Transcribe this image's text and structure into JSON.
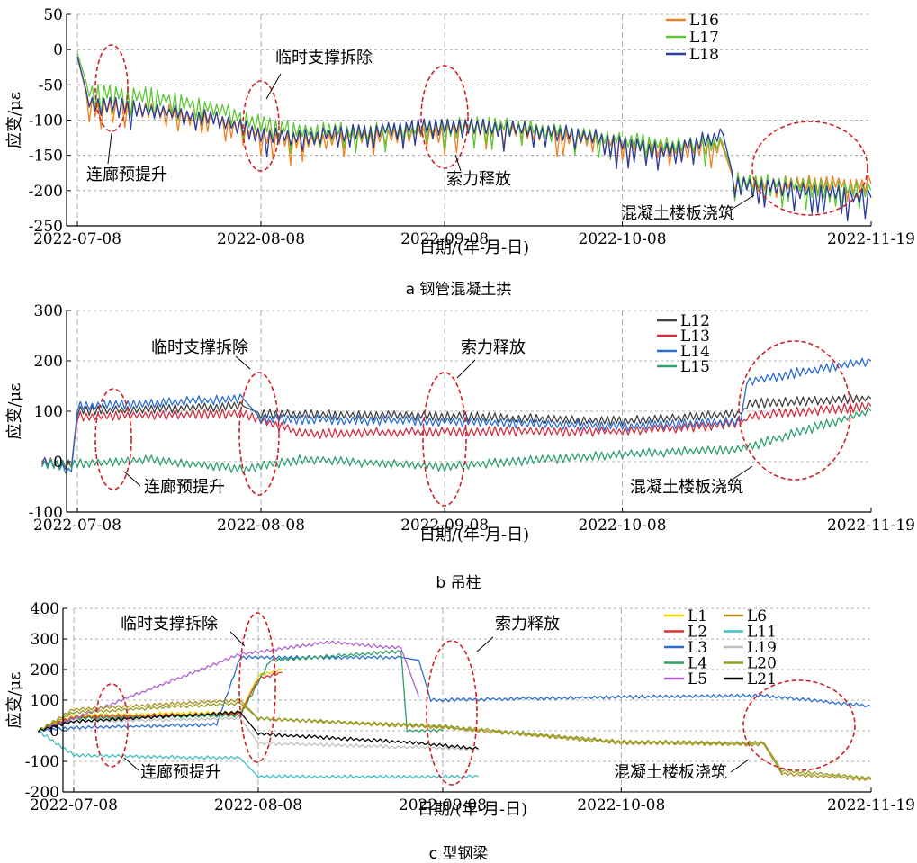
{
  "chart_data": [
    {
      "panel": "a",
      "caption": "a 钢管混凝土拱",
      "type": "line",
      "xlabel": "日期/(年-月-日)",
      "ylabel": "应变/με",
      "x_ticks": [
        "2022-07-08",
        "2022-08-08",
        "2022-09-08",
        "2022-10-08",
        "2022-11-19"
      ],
      "xlim": [
        "2022-07-08",
        "2022-11-19"
      ],
      "ylim": [
        -250,
        50
      ],
      "y_ticks": [
        50,
        0,
        -50,
        -100,
        -150,
        -200,
        -250
      ],
      "legend_position": "top-right",
      "grid": true,
      "series": [
        {
          "name": "L16",
          "color": "#f08020",
          "x": [
            "2022-07-08",
            "2022-07-10",
            "2022-07-20",
            "2022-08-01",
            "2022-08-08",
            "2022-08-15",
            "2022-09-01",
            "2022-09-15",
            "2022-10-01",
            "2022-10-15",
            "2022-10-25",
            "2022-10-27",
            "2022-11-19"
          ],
          "values": [
            -10,
            -80,
            -85,
            -100,
            -120,
            -130,
            -120,
            -110,
            -125,
            -140,
            -140,
            -190,
            -190
          ]
        },
        {
          "name": "L17",
          "color": "#5ac832",
          "x": [
            "2022-07-08",
            "2022-07-10",
            "2022-07-20",
            "2022-08-01",
            "2022-08-08",
            "2022-08-15",
            "2022-09-01",
            "2022-09-15",
            "2022-10-01",
            "2022-10-15",
            "2022-10-25",
            "2022-10-27",
            "2022-11-19"
          ],
          "values": [
            -5,
            -60,
            -65,
            -85,
            -105,
            -115,
            -115,
            -105,
            -120,
            -135,
            -135,
            -185,
            -200
          ]
        },
        {
          "name": "L18",
          "color": "#2a3c9a",
          "x": [
            "2022-07-08",
            "2022-07-10",
            "2022-07-20",
            "2022-08-01",
            "2022-08-08",
            "2022-08-15",
            "2022-09-01",
            "2022-09-15",
            "2022-10-01",
            "2022-10-15",
            "2022-10-25",
            "2022-10-27",
            "2022-11-19"
          ],
          "values": [
            -10,
            -75,
            -85,
            -100,
            -120,
            -125,
            -110,
            -110,
            -120,
            -145,
            -120,
            -190,
            -210
          ]
        }
      ],
      "annotations": [
        {
          "text": "连廊预提升",
          "date": "2022-07-10"
        },
        {
          "text": "临时支撑拆除",
          "date": "2022-08-05"
        },
        {
          "text": "索力释放",
          "date": "2022-09-04"
        },
        {
          "text": "混凝土楼板浇筑",
          "date": "2022-11-04"
        }
      ]
    },
    {
      "panel": "b",
      "caption": "b 吊柱",
      "type": "line",
      "xlabel": "日期/(年-月-日)",
      "ylabel": "应变/με",
      "x_ticks": [
        "2022-07-08",
        "2022-08-08",
        "2022-09-08",
        "2022-10-08",
        "2022-11-19"
      ],
      "xlim": [
        "2022-07-08",
        "2022-11-19"
      ],
      "ylim": [
        -100,
        300
      ],
      "y_ticks": [
        300,
        200,
        100,
        0,
        -100
      ],
      "legend_position": "top-right",
      "grid": true,
      "series": [
        {
          "name": "L12",
          "color": "#404040",
          "x": [
            "2022-07-02",
            "2022-07-07",
            "2022-07-08",
            "2022-08-05",
            "2022-08-08",
            "2022-09-08",
            "2022-10-08",
            "2022-10-28",
            "2022-10-29",
            "2022-11-19"
          ],
          "values": [
            0,
            -10,
            100,
            110,
            95,
            90,
            80,
            95,
            115,
            125
          ]
        },
        {
          "name": "L13",
          "color": "#d03040",
          "x": [
            "2022-07-02",
            "2022-07-07",
            "2022-07-08",
            "2022-08-05",
            "2022-08-15",
            "2022-09-08",
            "2022-10-08",
            "2022-10-28",
            "2022-10-29",
            "2022-11-19"
          ],
          "values": [
            0,
            -10,
            90,
            95,
            55,
            60,
            60,
            75,
            90,
            110
          ]
        },
        {
          "name": "L14",
          "color": "#2a6ed0",
          "x": [
            "2022-07-02",
            "2022-07-07",
            "2022-07-08",
            "2022-08-05",
            "2022-08-08",
            "2022-09-08",
            "2022-10-08",
            "2022-10-28",
            "2022-10-29",
            "2022-11-19"
          ],
          "values": [
            5,
            -20,
            110,
            125,
            85,
            80,
            70,
            80,
            160,
            200
          ]
        },
        {
          "name": "L15",
          "color": "#30a070",
          "x": [
            "2022-07-02",
            "2022-07-08",
            "2022-07-20",
            "2022-08-05",
            "2022-08-15",
            "2022-09-08",
            "2022-10-08",
            "2022-10-28",
            "2022-11-19"
          ],
          "values": [
            -5,
            -5,
            5,
            -15,
            5,
            -10,
            15,
            25,
            100
          ]
        }
      ],
      "annotations": [
        {
          "text": "连廊预提升",
          "date": "2022-07-10"
        },
        {
          "text": "临时支撑拆除",
          "date": "2022-08-05"
        },
        {
          "text": "索力释放",
          "date": "2022-09-04"
        },
        {
          "text": "混凝土楼板浇筑",
          "date": "2022-11-04"
        }
      ]
    },
    {
      "panel": "c",
      "caption": "c 型钢梁",
      "type": "line",
      "xlabel": "日期/(年-月-日)",
      "ylabel": "应变/με",
      "x_ticks": [
        "2022-07-08",
        "2022-08-08",
        "2022-09-08",
        "2022-10-08",
        "2022-11-19"
      ],
      "xlim": [
        "2022-07-08",
        "2022-11-19"
      ],
      "ylim": [
        -200,
        400
      ],
      "y_ticks": [
        400,
        300,
        200,
        100,
        0,
        -100,
        -200
      ],
      "legend_position": "top-right",
      "legend_columns": 2,
      "grid": true,
      "series": [
        {
          "name": "L1",
          "color": "#e8d800",
          "x": [
            "2022-07-02",
            "2022-07-08",
            "2022-08-05",
            "2022-08-08",
            "2022-08-12"
          ],
          "values": [
            0,
            50,
            60,
            180,
            200
          ]
        },
        {
          "name": "L2",
          "color": "#e03030",
          "x": [
            "2022-07-02",
            "2022-07-08",
            "2022-08-05",
            "2022-08-08",
            "2022-08-12"
          ],
          "values": [
            0,
            45,
            55,
            170,
            190
          ]
        },
        {
          "name": "L3",
          "color": "#2a6ed0",
          "x": [
            "2022-07-02",
            "2022-07-08",
            "2022-08-01",
            "2022-08-05",
            "2022-09-01",
            "2022-09-04",
            "2022-09-06",
            "2022-10-08",
            "2022-11-01",
            "2022-11-19"
          ],
          "values": [
            0,
            10,
            20,
            240,
            240,
            230,
            100,
            110,
            115,
            80
          ]
        },
        {
          "name": "L4",
          "color": "#30a060",
          "x": [
            "2022-07-02",
            "2022-07-08",
            "2022-08-05",
            "2022-08-10",
            "2022-09-01",
            "2022-09-02",
            "2022-09-08"
          ],
          "values": [
            0,
            40,
            50,
            230,
            260,
            0,
            0
          ]
        },
        {
          "name": "L5",
          "color": "#b060d0",
          "x": [
            "2022-07-02",
            "2022-07-08",
            "2022-08-05",
            "2022-08-20",
            "2022-09-01",
            "2022-09-04"
          ],
          "values": [
            0,
            40,
            250,
            290,
            270,
            110
          ]
        },
        {
          "name": "L6",
          "color": "#a89020",
          "x": [
            "2022-07-02",
            "2022-07-08",
            "2022-08-05",
            "2022-08-08",
            "2022-09-08",
            "2022-10-08",
            "2022-11-01",
            "2022-11-04",
            "2022-11-19"
          ],
          "values": [
            0,
            70,
            100,
            40,
            10,
            -40,
            -45,
            -140,
            -160
          ]
        },
        {
          "name": "L11",
          "color": "#40c0c0",
          "x": [
            "2022-07-02",
            "2022-07-08",
            "2022-08-05",
            "2022-08-08",
            "2022-09-14"
          ],
          "values": [
            0,
            -80,
            -90,
            -150,
            -150
          ]
        },
        {
          "name": "L19",
          "color": "#c0c0c0",
          "x": [
            "2022-07-02",
            "2022-07-08",
            "2022-08-05",
            "2022-08-08",
            "2022-09-14"
          ],
          "values": [
            0,
            30,
            40,
            -40,
            -60
          ]
        },
        {
          "name": "L20",
          "color": "#90a020",
          "x": [
            "2022-07-02",
            "2022-07-08",
            "2022-08-05",
            "2022-08-08",
            "2022-09-08",
            "2022-10-08",
            "2022-11-01",
            "2022-11-04",
            "2022-11-19"
          ],
          "values": [
            0,
            60,
            90,
            40,
            15,
            -35,
            -40,
            -130,
            -155
          ]
        },
        {
          "name": "L21",
          "color": "#000000",
          "x": [
            "2022-07-02",
            "2022-07-08",
            "2022-08-05",
            "2022-08-08",
            "2022-09-04",
            "2022-09-14"
          ],
          "values": [
            0,
            30,
            60,
            -10,
            -40,
            -60
          ]
        }
      ],
      "annotations": [
        {
          "text": "连廊预提升",
          "date": "2022-07-10"
        },
        {
          "text": "临时支撑拆除",
          "date": "2022-08-05"
        },
        {
          "text": "索力释放",
          "date": "2022-09-04"
        },
        {
          "text": "混凝土楼板浇筑",
          "date": "2022-11-04"
        }
      ]
    }
  ]
}
